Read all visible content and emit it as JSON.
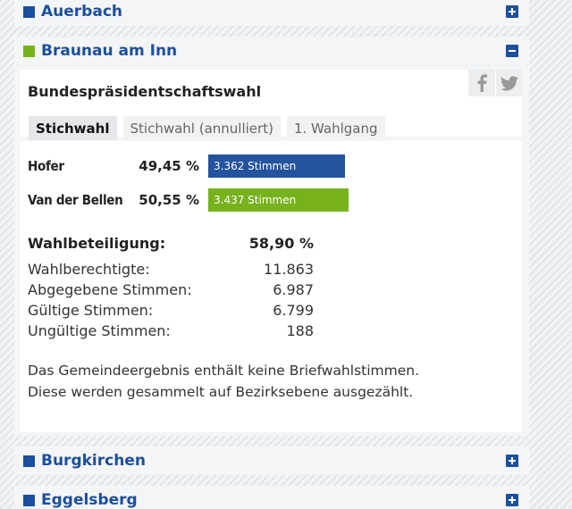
{
  "colors": {
    "brand_blue": "#1c4f9c",
    "active_green": "#77b21d",
    "hofer_bar": "#25549f",
    "vdb_bar": "#77b21d"
  },
  "sections": [
    {
      "title": "Auerbach",
      "state": "collapsed",
      "toggle_icon": "plus-icon"
    },
    {
      "title": "Braunau am Inn",
      "state": "expanded",
      "toggle_icon": "minus-icon"
    },
    {
      "title": "Burgkirchen",
      "state": "collapsed",
      "toggle_icon": "plus-icon"
    },
    {
      "title": "Eggelsberg",
      "state": "collapsed",
      "toggle_icon": "plus-icon"
    }
  ],
  "panel": {
    "election_title": "Bundespräsidentschaftswahl",
    "share_icons": [
      "facebook-icon",
      "twitter-icon"
    ],
    "tabs": [
      {
        "label": "Stichwahl",
        "active": true
      },
      {
        "label": "Stichwahl (annulliert)",
        "active": false
      },
      {
        "label": "1. Wahlgang",
        "active": false
      }
    ],
    "candidates": [
      {
        "name": "Hofer",
        "percent": "49,45 %",
        "votes_label": "3.362 Stimmen",
        "share": 49.45
      },
      {
        "name": "Van der Bellen",
        "percent": "50,55 %",
        "votes_label": "3.437 Stimmen",
        "share": 50.55
      }
    ],
    "turnout": {
      "label": "Wahlbeteiligung:",
      "value": "58,90 %"
    },
    "stats": [
      {
        "label": "Wahlberechtigte:",
        "value": "11.863"
      },
      {
        "label": "Abgegebene Stimmen:",
        "value": "6.987"
      },
      {
        "label": "Gültige Stimmen:",
        "value": "6.799"
      },
      {
        "label": "Ungültige Stimmen:",
        "value": "188"
      }
    ],
    "note_lines": [
      "Das Gemeindeergebnis enthält keine Briefwahlstimmen.",
      "Diese werden gesammelt auf Bezirksebene ausgezählt."
    ]
  }
}
